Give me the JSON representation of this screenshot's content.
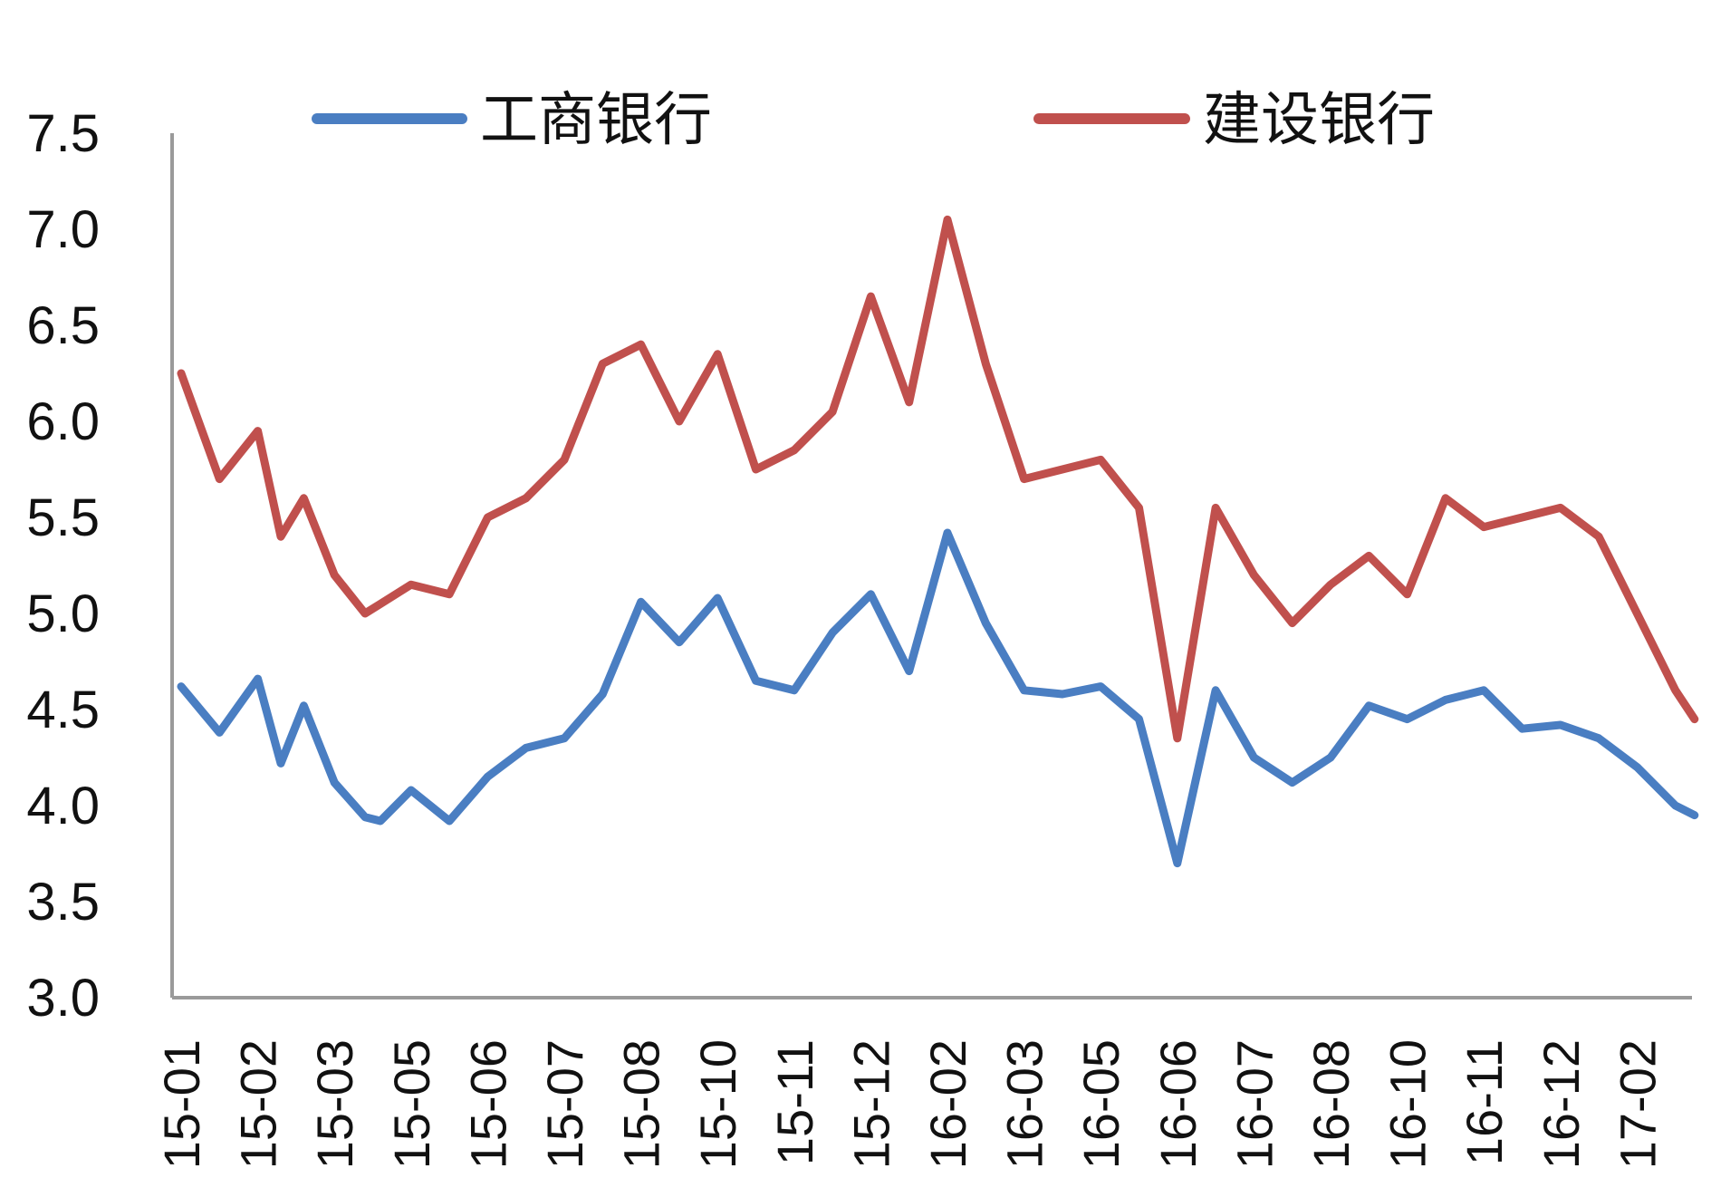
{
  "chart_data": {
    "type": "line",
    "title": "",
    "xlabel": "",
    "ylabel": "",
    "ylim": [
      3.0,
      7.5
    ],
    "yticks": [
      "7.5",
      "7.0",
      "6.5",
      "6.0",
      "5.5",
      "5.0",
      "4.5",
      "4.0",
      "3.5",
      "3.0"
    ],
    "xticks": [
      "15-01",
      "15-02",
      "15-03",
      "15-05",
      "15-06",
      "15-07",
      "15-08",
      "15-10",
      "15-11",
      "15-12",
      "16-02",
      "16-03",
      "16-05",
      "16-06",
      "16-07",
      "16-08",
      "16-10",
      "16-11",
      "16-12",
      "17-02"
    ],
    "grid": false,
    "legend_position": "top",
    "series": [
      {
        "name": "工商银行",
        "color": "#4a7ec2",
        "x": [
          0,
          0.5,
          1,
          1.3,
          1.6,
          2,
          2.4,
          2.6,
          3,
          3.5,
          4,
          4.5,
          5,
          5.5,
          6,
          6.5,
          7,
          7.5,
          8,
          8.5,
          9,
          9.5,
          10,
          10.5,
          11,
          11.5,
          12,
          12.5,
          13,
          13.5,
          14,
          14.5,
          15,
          15.5,
          16,
          16.5,
          17,
          17.5,
          18,
          18.5,
          19,
          19.5,
          19.75
        ],
        "values": [
          4.62,
          4.38,
          4.66,
          4.22,
          4.52,
          4.12,
          3.94,
          3.92,
          4.08,
          3.92,
          4.15,
          4.3,
          4.35,
          4.58,
          5.06,
          4.85,
          5.08,
          4.65,
          4.6,
          4.9,
          5.1,
          4.7,
          5.42,
          4.95,
          4.6,
          4.58,
          4.62,
          4.45,
          3.7,
          4.6,
          4.25,
          4.12,
          4.25,
          4.52,
          4.45,
          4.55,
          4.6,
          4.4,
          4.42,
          4.35,
          4.2,
          4.0,
          3.95
        ]
      },
      {
        "name": "建设银行",
        "color": "#c0504d",
        "x": [
          0,
          0.5,
          1,
          1.3,
          1.6,
          2,
          2.4,
          2.6,
          3,
          3.5,
          4,
          4.5,
          5,
          5.5,
          6,
          6.5,
          7,
          7.5,
          8,
          8.5,
          9,
          9.5,
          10,
          10.5,
          11,
          11.5,
          12,
          12.5,
          13,
          13.5,
          14,
          14.5,
          15,
          15.5,
          16,
          16.5,
          17,
          17.5,
          18,
          18.5,
          19,
          19.5,
          19.75
        ],
        "values": [
          6.25,
          5.7,
          5.95,
          5.4,
          5.6,
          5.2,
          5.0,
          5.05,
          5.15,
          5.1,
          5.5,
          5.6,
          5.8,
          6.3,
          6.4,
          6.0,
          6.35,
          5.75,
          5.85,
          6.05,
          6.65,
          6.1,
          7.05,
          6.3,
          5.7,
          5.75,
          5.8,
          5.55,
          4.35,
          5.55,
          5.2,
          4.95,
          5.15,
          5.3,
          5.1,
          5.6,
          5.45,
          5.5,
          5.55,
          5.4,
          5.0,
          4.6,
          4.45
        ]
      }
    ]
  },
  "legend": {
    "items": [
      {
        "label": "工商银行",
        "color": "#4a7ec2"
      },
      {
        "label": "建设银行",
        "color": "#c0504d"
      }
    ]
  }
}
